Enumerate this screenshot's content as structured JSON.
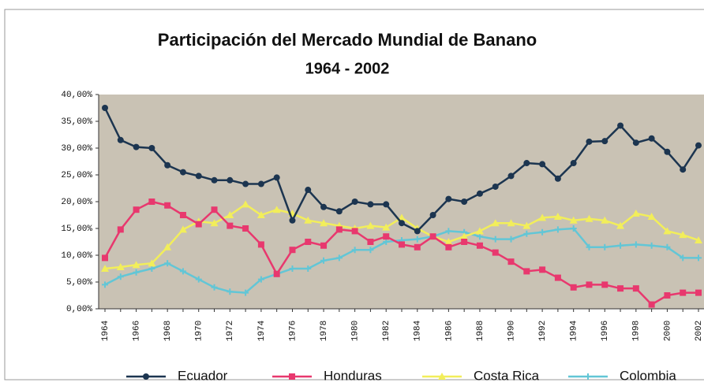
{
  "chart_data": {
    "type": "line",
    "title": "Participación del Mercado Mundial de Banano",
    "subtitle": "1964 - 2002",
    "categories": [
      "1964",
      null,
      "1966",
      null,
      "1968",
      null,
      "1970",
      null,
      "1972",
      null,
      "1974",
      null,
      "1976",
      null,
      "1978",
      null,
      "1980",
      null,
      "1982",
      null,
      "1984",
      null,
      "1986",
      null,
      "1988",
      null,
      "1990",
      null,
      "1992",
      null,
      "1994",
      null,
      "1996",
      null,
      "1998",
      null,
      "2000",
      null,
      "2002"
    ],
    "series": [
      {
        "name": "Ecuador",
        "color": "#1c3550",
        "marker": "circle",
        "values": [
          37.5,
          31.5,
          30.2,
          30,
          26.8,
          25.5,
          24.8,
          24,
          24,
          23.3,
          23.3,
          24.5,
          16.5,
          22.2,
          19,
          18.2,
          20,
          19.5,
          19.5,
          16,
          14.5,
          17.5,
          20.5,
          20,
          21.5,
          22.8,
          24.8,
          27.2,
          27,
          24.3,
          27.2,
          31.2,
          31.3,
          34.2,
          31,
          31.8,
          29.3,
          26,
          30.5
        ]
      },
      {
        "name": "Honduras",
        "color": "#e8386e",
        "marker": "square",
        "values": [
          9.5,
          14.8,
          18.5,
          20,
          19.3,
          17.5,
          15.8,
          18.5,
          15.5,
          15,
          12,
          6.5,
          11,
          12.5,
          11.8,
          14.8,
          14.5,
          12.5,
          13.5,
          12,
          11.5,
          13.5,
          11.5,
          12.5,
          11.8,
          10.5,
          8.8,
          7,
          7.3,
          5.8,
          4,
          4.5,
          4.5,
          3.8,
          3.8,
          0.8,
          2.5,
          3,
          3
        ]
      },
      {
        "name": "Costa Rica",
        "color": "#f2ee5a",
        "marker": "triangle",
        "values": [
          7.5,
          7.8,
          8.2,
          8.5,
          11.5,
          14.8,
          16.3,
          16,
          17.5,
          19.5,
          17.5,
          18.5,
          17.8,
          16.5,
          16,
          15.5,
          15,
          15.5,
          15.2,
          17,
          15,
          13.5,
          12.5,
          13.5,
          14.5,
          16,
          16,
          15.5,
          17,
          17.2,
          16.5,
          16.8,
          16.5,
          15.5,
          17.8,
          17.2,
          14.5,
          13.8,
          12.8
        ]
      },
      {
        "name": "Colombia",
        "color": "#62c6d6",
        "marker": "cross",
        "values": [
          4.5,
          6,
          6.8,
          7.5,
          8.5,
          7,
          5.5,
          4,
          3.2,
          3,
          5.5,
          6.5,
          7.5,
          7.5,
          9,
          9.5,
          11,
          11,
          12.5,
          12.8,
          13,
          13.5,
          14.5,
          14.3,
          13.5,
          13,
          13,
          14,
          14.3,
          14.8,
          15,
          11.5,
          11.5,
          11.8,
          12,
          11.8,
          11.5,
          9.5,
          9.5
        ]
      }
    ],
    "ylim": [
      0,
      40
    ],
    "yticks": [
      {
        "value": 0,
        "label": "0,00%"
      },
      {
        "value": 5,
        "label": "5,00%"
      },
      {
        "value": 10,
        "label": "10,00%"
      },
      {
        "value": 15,
        "label": "15,00%"
      },
      {
        "value": 20,
        "label": "20,00%"
      },
      {
        "value": 25,
        "label": "25,00%"
      },
      {
        "value": 30,
        "label": "30,00%"
      },
      {
        "value": 35,
        "label": "35,00%"
      },
      {
        "value": 40,
        "label": "40,00%"
      }
    ],
    "plot_background": "#c9c2b4",
    "legend": "bottom"
  }
}
